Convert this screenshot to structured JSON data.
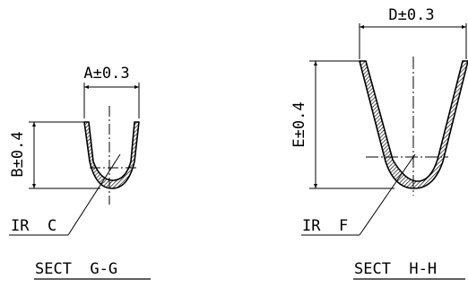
{
  "sections": [
    {
      "id": "G-G",
      "width_dim": "A±0.3",
      "height_dim": "B±0.4",
      "radius_note": "IR  C",
      "title": "SECT  G-G"
    },
    {
      "id": "H-H",
      "width_dim": "D±0.3",
      "height_dim": "E±0.4",
      "radius_note": "IR  F",
      "title": "SECT  H-H"
    }
  ]
}
